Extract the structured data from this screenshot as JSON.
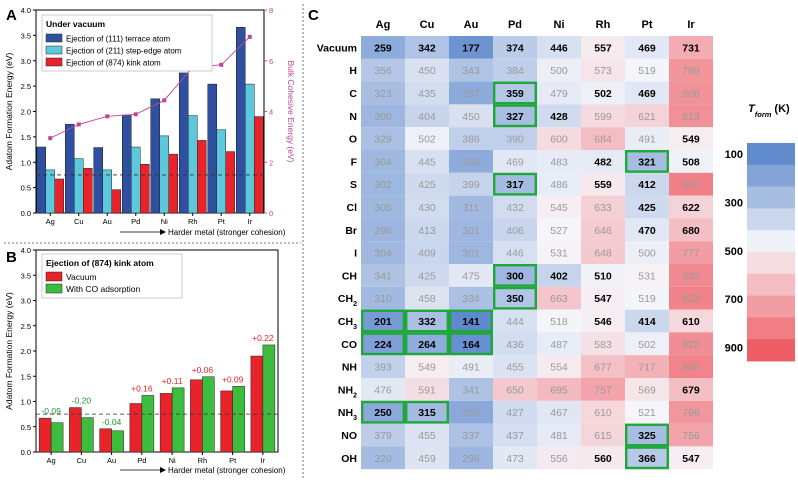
{
  "colors": {
    "terrace": "#2f4fa0",
    "step": "#5cc8dc",
    "kink": "#e8232a",
    "co": "#3dbd3d",
    "cohesive": "#c0449a",
    "neg_label": "#1f9a2a",
    "pos_label": "#e8232a",
    "highlight": "#1fa83a"
  },
  "chart_data": [
    {
      "panel": "A",
      "type": "bar",
      "legend_title": "Under vacuum",
      "categories": [
        "Ag",
        "Cu",
        "Au",
        "Pd",
        "Ni",
        "Rh",
        "Pt",
        "Ir"
      ],
      "series": [
        {
          "name": "Ejection of (111) terrace atom",
          "values": [
            1.3,
            1.75,
            1.29,
            1.93,
            2.25,
            2.76,
            2.54,
            3.66
          ]
        },
        {
          "name": "Ejection of (211) step-edge atom",
          "values": [
            0.85,
            1.07,
            0.85,
            1.3,
            1.52,
            1.92,
            1.64,
            2.54
          ]
        },
        {
          "name": "Ejection of (874) kink atom",
          "values": [
            0.67,
            0.88,
            0.46,
            0.96,
            1.16,
            1.43,
            1.21,
            1.9
          ]
        }
      ],
      "secondary_series": {
        "name": "Bulk Cohesive Energy",
        "values": [
          2.95,
          3.49,
          3.81,
          3.89,
          4.44,
          5.75,
          5.84,
          6.94
        ]
      },
      "dashed_line": 0.75,
      "ylabel": "Adatom Formation Energy (eV)",
      "y2label": "Bulk Cohesive Energy (eV)",
      "xlabel": "Harder metal (stronger cohesion)",
      "ylim": [
        0,
        4.0
      ],
      "y2lim": [
        0,
        8
      ],
      "yticks": [
        "0.0",
        "0.5",
        "1.0",
        "1.5",
        "2.0",
        "2.5",
        "3.0",
        "3.5",
        "4.0"
      ],
      "y2ticks": [
        "0",
        "2",
        "4",
        "6",
        "8"
      ]
    },
    {
      "panel": "B",
      "type": "bar",
      "legend_title": "Ejection of (874) kink atom",
      "categories": [
        "Ag",
        "Cu",
        "Au",
        "Pd",
        "Ni",
        "Rh",
        "Pt",
        "Ir"
      ],
      "series": [
        {
          "name": "Vacuum",
          "values": [
            0.67,
            0.88,
            0.46,
            0.96,
            1.16,
            1.43,
            1.21,
            1.9
          ]
        },
        {
          "name": "With CO adsorption",
          "values": [
            0.58,
            0.68,
            0.42,
            1.12,
            1.27,
            1.49,
            1.3,
            2.12
          ]
        }
      ],
      "annotations": [
        "-0.09",
        "-0.20",
        "-0.04",
        "+0.16",
        "+0.11",
        "+0.06",
        "+0.09",
        "+0.22"
      ],
      "dashed_line": 0.75,
      "ylabel": "Adatom Formation Energy (eV)",
      "xlabel": "Harder metal (stronger cohesion)",
      "ylim": [
        0,
        4.0
      ],
      "yticks": [
        "0.0",
        "0.5",
        "1.0",
        "1.5",
        "2.0",
        "2.5",
        "3.0",
        "3.5",
        "4.0"
      ]
    },
    {
      "panel": "C",
      "type": "heatmap",
      "columns": [
        "Ag",
        "Cu",
        "Au",
        "Pd",
        "Ni",
        "Rh",
        "Pt",
        "Ir"
      ],
      "rows": [
        "Vacuum",
        "H",
        "C",
        "N",
        "O",
        "F",
        "S",
        "Cl",
        "Br",
        "I",
        "CH",
        "CH2",
        "CH3",
        "CO",
        "NH",
        "NH2",
        "NH3",
        "NO",
        "OH"
      ],
      "values": [
        [
          259,
          342,
          177,
          374,
          446,
          557,
          469,
          731
        ],
        [
          356,
          450,
          343,
          384,
          500,
          573,
          519,
          799
        ],
        [
          323,
          435,
          257,
          359,
          479,
          502,
          469,
          806
        ],
        [
          300,
          404,
          450,
          327,
          428,
          599,
          621,
          813
        ],
        [
          329,
          502,
          386,
          390,
          600,
          684,
          491,
          549
        ],
        [
          304,
          445,
          260,
          469,
          483,
          482,
          321,
          508
        ],
        [
          302,
          425,
          399,
          317,
          486,
          559,
          412,
          860
        ],
        [
          305,
          430,
          311,
          432,
          545,
          633,
          425,
          622
        ],
        [
          296,
          413,
          301,
          406,
          527,
          646,
          470,
          680
        ],
        [
          304,
          409,
          301,
          446,
          531,
          648,
          500,
          777
        ],
        [
          341,
          425,
          475,
          300,
          402,
          510,
          531,
          832
        ],
        [
          310,
          458,
          334,
          350,
          663,
          547,
          519,
          852
        ],
        [
          201,
          332,
          141,
          444,
          518,
          546,
          414,
          610
        ],
        [
          224,
          264,
          164,
          436,
          487,
          583,
          502,
          820
        ],
        [
          393,
          549,
          491,
          455,
          554,
          677,
          717,
          846
        ],
        [
          476,
          591,
          341,
          650,
          695,
          757,
          569,
          679
        ],
        [
          250,
          315,
          250,
          427,
          467,
          610,
          521,
          796
        ],
        [
          379,
          455,
          337,
          437,
          481,
          615,
          325,
          756
        ],
        [
          320,
          459,
          296,
          473,
          556,
          560,
          366,
          547
        ]
      ],
      "highlights": [
        [
          2,
          3
        ],
        [
          3,
          3
        ],
        [
          5,
          6
        ],
        [
          6,
          3
        ],
        [
          10,
          3
        ],
        [
          11,
          3
        ],
        [
          12,
          0
        ],
        [
          12,
          1
        ],
        [
          12,
          2
        ],
        [
          13,
          0
        ],
        [
          13,
          1
        ],
        [
          13,
          2
        ],
        [
          16,
          0
        ],
        [
          16,
          1
        ],
        [
          17,
          6
        ],
        [
          18,
          6
        ]
      ],
      "colorbar": {
        "label": "T",
        "subscript": "form",
        "unit": "(K)",
        "ticks": [
          "100",
          "300",
          "500",
          "700",
          "900"
        ],
        "range": [
          100,
          1000
        ]
      }
    }
  ]
}
